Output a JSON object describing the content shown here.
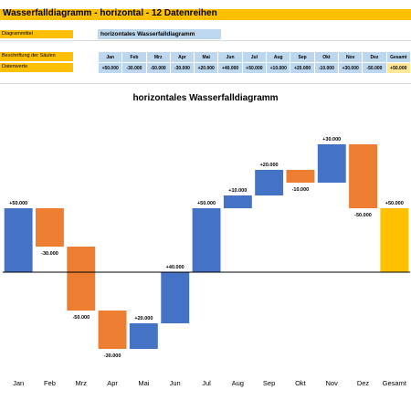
{
  "sheet": {
    "title": "Wasserfalldiagramm - horizontal - 12 Datenreihen",
    "label_chart_title": "Diagrammtitel",
    "chart_title_value": "horizontales Wasserfalldiagramm",
    "label_columns": "Beschriftung der Säulen",
    "label_values": "Datenwerte",
    "columns": [
      "Jan",
      "Feb",
      "Mrz",
      "Apr",
      "Mai",
      "Jun",
      "Jul",
      "Aug",
      "Sep",
      "Okt",
      "Nov",
      "Dez",
      "Gesamt"
    ],
    "values": [
      "+50.000",
      "-30.000",
      "-50.000",
      "-30.000",
      "+20.000",
      "+40.000",
      "+50.000",
      "+10.000",
      "+20.000",
      "-10.000",
      "+30.000",
      "-50.000",
      "+50.000"
    ]
  },
  "colors": {
    "increase": "#4472c4",
    "decrease": "#ed7d31",
    "total": "#ffc000",
    "header_orange": "#ffc000",
    "cell_blue": "#bdd7ee"
  },
  "chart_data": {
    "type": "bar",
    "subtype": "waterfall",
    "title": "horizontales Wasserfalldiagramm",
    "categories": [
      "Jan",
      "Feb",
      "Mrz",
      "Apr",
      "Mai",
      "Jun",
      "Jul",
      "Aug",
      "Sep",
      "Okt",
      "Nov",
      "Dez",
      "Gesamt"
    ],
    "values": [
      50000,
      -30000,
      -50000,
      -30000,
      20000,
      40000,
      50000,
      10000,
      20000,
      -10000,
      30000,
      -50000,
      50000
    ],
    "data_labels": [
      "+50.000",
      "-30.000",
      "-50.000",
      "-30.000",
      "+20.000",
      "+40.000",
      "+50.000",
      "+10.000",
      "+20.000",
      "-10.000",
      "+30.000",
      "-50.000",
      "+50.000"
    ],
    "total_index": 12,
    "ylim": [
      -60000,
      100000
    ],
    "grid": false,
    "legend": "none"
  }
}
